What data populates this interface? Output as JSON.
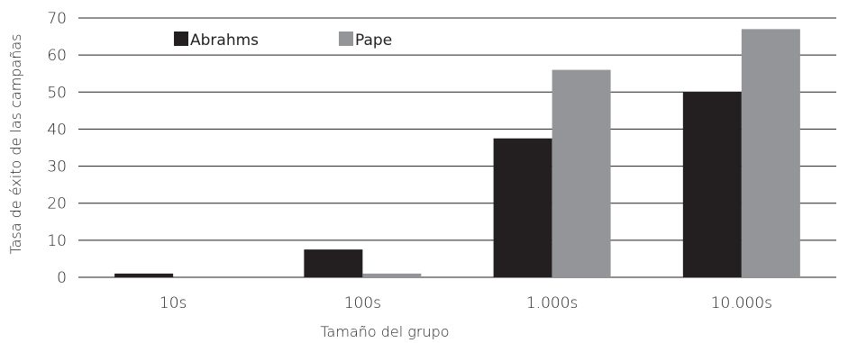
{
  "chart_data": {
    "type": "bar",
    "title": "",
    "xlabel": "Tamaño del grupo",
    "ylabel": "Tasa de éxito de las campañas",
    "categories": [
      "10s",
      "100s",
      "1.000s",
      "10.000s"
    ],
    "ylim": [
      0,
      70
    ],
    "yticks": [
      "0",
      "10",
      "20",
      "30",
      "40",
      "50",
      "60",
      "70"
    ],
    "grid": true,
    "legend_position": "top-left",
    "series": [
      {
        "name": "Abrahms",
        "color": "#231f20",
        "values": [
          1,
          7.5,
          37.5,
          50
        ]
      },
      {
        "name": "Pape",
        "color": "#939598",
        "values": [
          0,
          1,
          56,
          67
        ]
      }
    ]
  }
}
